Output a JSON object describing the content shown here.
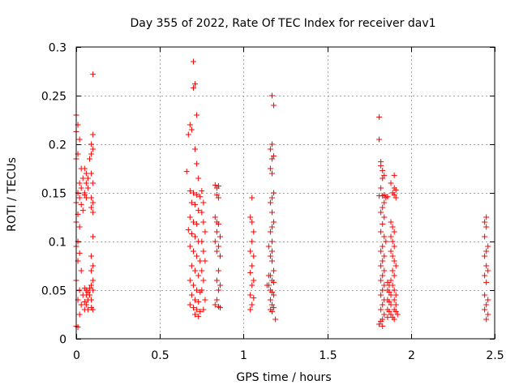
{
  "chart_data": {
    "type": "scatter",
    "title": "Day 355 of 2022, Rate Of TEC Index for receiver dav1",
    "xlabel": "GPS time / hours",
    "ylabel": "ROTI / TECUs",
    "xlim": [
      0,
      2.5
    ],
    "ylim": [
      0,
      0.3
    ],
    "xticks": [
      0,
      0.5,
      1,
      1.5,
      2,
      2.5
    ],
    "xtick_labels": [
      "0",
      "0.5",
      "1",
      "1.5",
      "2",
      "2.5"
    ],
    "yticks": [
      0,
      0.05,
      0.1,
      0.15,
      0.2,
      0.25,
      0.3
    ],
    "ytick_labels": [
      "0",
      "0.05",
      "0.1",
      "0.15",
      "0.2",
      "0.25",
      "0.3"
    ],
    "grid": true,
    "marker": "+",
    "color": "#ff0000",
    "series": [
      {
        "name": "ROTI",
        "points": [
          [
            0.0,
            0.23
          ],
          [
            0.01,
            0.22
          ],
          [
            0.0,
            0.213
          ],
          [
            0.02,
            0.205
          ],
          [
            0.01,
            0.19
          ],
          [
            0.0,
            0.185
          ],
          [
            0.03,
            0.175
          ],
          [
            0.04,
            0.165
          ],
          [
            0.02,
            0.16
          ],
          [
            0.03,
            0.155
          ],
          [
            0.01,
            0.15
          ],
          [
            0.05,
            0.148
          ],
          [
            0.02,
            0.145
          ],
          [
            0.0,
            0.14
          ],
          [
            0.03,
            0.138
          ],
          [
            0.04,
            0.132
          ],
          [
            0.01,
            0.128
          ],
          [
            0.0,
            0.12
          ],
          [
            0.02,
            0.115
          ],
          [
            0.01,
            0.1
          ],
          [
            0.0,
            0.095
          ],
          [
            0.02,
            0.088
          ],
          [
            0.01,
            0.08
          ],
          [
            0.03,
            0.07
          ],
          [
            0.0,
            0.06
          ],
          [
            0.02,
            0.05
          ],
          [
            0.04,
            0.045
          ],
          [
            0.01,
            0.04
          ],
          [
            0.03,
            0.035
          ],
          [
            0.05,
            0.03
          ],
          [
            0.02,
            0.025
          ],
          [
            0.0,
            0.013
          ],
          [
            0.01,
            0.012
          ],
          [
            0.05,
            0.175
          ],
          [
            0.06,
            0.17
          ],
          [
            0.07,
            0.165
          ],
          [
            0.06,
            0.16
          ],
          [
            0.07,
            0.155
          ],
          [
            0.05,
            0.15
          ],
          [
            0.06,
            0.145
          ],
          [
            0.05,
            0.052
          ],
          [
            0.06,
            0.05
          ],
          [
            0.07,
            0.048
          ],
          [
            0.06,
            0.045
          ],
          [
            0.07,
            0.04
          ],
          [
            0.05,
            0.038
          ],
          [
            0.06,
            0.035
          ],
          [
            0.07,
            0.03
          ],
          [
            0.1,
            0.272
          ],
          [
            0.1,
            0.21
          ],
          [
            0.09,
            0.2
          ],
          [
            0.1,
            0.195
          ],
          [
            0.09,
            0.19
          ],
          [
            0.08,
            0.185
          ],
          [
            0.09,
            0.17
          ],
          [
            0.1,
            0.16
          ],
          [
            0.09,
            0.145
          ],
          [
            0.1,
            0.14
          ],
          [
            0.09,
            0.135
          ],
          [
            0.1,
            0.13
          ],
          [
            0.1,
            0.105
          ],
          [
            0.09,
            0.085
          ],
          [
            0.1,
            0.075
          ],
          [
            0.09,
            0.07
          ],
          [
            0.1,
            0.06
          ],
          [
            0.09,
            0.055
          ],
          [
            0.1,
            0.05
          ],
          [
            0.08,
            0.045
          ],
          [
            0.09,
            0.04
          ],
          [
            0.1,
            0.03
          ],
          [
            0.08,
            0.052
          ],
          [
            0.09,
            0.032
          ],
          [
            0.68,
            0.22
          ],
          [
            0.69,
            0.215
          ],
          [
            0.67,
            0.21
          ],
          [
            0.66,
            0.172
          ],
          [
            0.7,
            0.285
          ],
          [
            0.71,
            0.262
          ],
          [
            0.7,
            0.258
          ],
          [
            0.72,
            0.23
          ],
          [
            0.71,
            0.195
          ],
          [
            0.72,
            0.18
          ],
          [
            0.73,
            0.165
          ],
          [
            0.68,
            0.152
          ],
          [
            0.7,
            0.15
          ],
          [
            0.72,
            0.148
          ],
          [
            0.74,
            0.146
          ],
          [
            0.69,
            0.14
          ],
          [
            0.71,
            0.138
          ],
          [
            0.73,
            0.132
          ],
          [
            0.68,
            0.125
          ],
          [
            0.7,
            0.12
          ],
          [
            0.72,
            0.118
          ],
          [
            0.67,
            0.112
          ],
          [
            0.69,
            0.108
          ],
          [
            0.71,
            0.105
          ],
          [
            0.73,
            0.1
          ],
          [
            0.68,
            0.095
          ],
          [
            0.7,
            0.09
          ],
          [
            0.72,
            0.085
          ],
          [
            0.74,
            0.08
          ],
          [
            0.69,
            0.075
          ],
          [
            0.71,
            0.07
          ],
          [
            0.73,
            0.065
          ],
          [
            0.68,
            0.06
          ],
          [
            0.7,
            0.055
          ],
          [
            0.72,
            0.05
          ],
          [
            0.74,
            0.048
          ],
          [
            0.69,
            0.045
          ],
          [
            0.71,
            0.04
          ],
          [
            0.73,
            0.038
          ],
          [
            0.68,
            0.035
          ],
          [
            0.7,
            0.032
          ],
          [
            0.72,
            0.03
          ],
          [
            0.71,
            0.025
          ],
          [
            0.73,
            0.023
          ],
          [
            0.75,
            0.152
          ],
          [
            0.76,
            0.14
          ],
          [
            0.75,
            0.13
          ],
          [
            0.76,
            0.12
          ],
          [
            0.77,
            0.11
          ],
          [
            0.75,
            0.1
          ],
          [
            0.76,
            0.09
          ],
          [
            0.77,
            0.08
          ],
          [
            0.75,
            0.07
          ],
          [
            0.76,
            0.06
          ],
          [
            0.75,
            0.05
          ],
          [
            0.77,
            0.04
          ],
          [
            0.76,
            0.03
          ],
          [
            0.74,
            0.028
          ],
          [
            0.83,
            0.158
          ],
          [
            0.84,
            0.155
          ],
          [
            0.85,
            0.157
          ],
          [
            0.84,
            0.148
          ],
          [
            0.85,
            0.145
          ],
          [
            0.83,
            0.125
          ],
          [
            0.84,
            0.12
          ],
          [
            0.85,
            0.118
          ],
          [
            0.84,
            0.11
          ],
          [
            0.86,
            0.105
          ],
          [
            0.83,
            0.1
          ],
          [
            0.85,
            0.095
          ],
          [
            0.84,
            0.09
          ],
          [
            0.86,
            0.085
          ],
          [
            0.85,
            0.07
          ],
          [
            0.84,
            0.06
          ],
          [
            0.86,
            0.055
          ],
          [
            0.85,
            0.05
          ],
          [
            0.84,
            0.04
          ],
          [
            0.83,
            0.035
          ],
          [
            0.86,
            0.032
          ],
          [
            0.85,
            0.033
          ],
          [
            1.05,
            0.145
          ],
          [
            1.04,
            0.125
          ],
          [
            1.05,
            0.12
          ],
          [
            1.06,
            0.11
          ],
          [
            1.05,
            0.1
          ],
          [
            1.04,
            0.09
          ],
          [
            1.06,
            0.085
          ],
          [
            1.05,
            0.075
          ],
          [
            1.04,
            0.068
          ],
          [
            1.06,
            0.06
          ],
          [
            1.05,
            0.055
          ],
          [
            1.04,
            0.045
          ],
          [
            1.06,
            0.042
          ],
          [
            1.05,
            0.035
          ],
          [
            1.04,
            0.03
          ],
          [
            1.17,
            0.25
          ],
          [
            1.18,
            0.24
          ],
          [
            1.17,
            0.2
          ],
          [
            1.16,
            0.195
          ],
          [
            1.18,
            0.188
          ],
          [
            1.17,
            0.185
          ],
          [
            1.16,
            0.175
          ],
          [
            1.17,
            0.17
          ],
          [
            1.18,
            0.15
          ],
          [
            1.17,
            0.145
          ],
          [
            1.16,
            0.14
          ],
          [
            1.17,
            0.13
          ],
          [
            1.18,
            0.12
          ],
          [
            1.17,
            0.115
          ],
          [
            1.16,
            0.11
          ],
          [
            1.17,
            0.1
          ],
          [
            1.15,
            0.095
          ],
          [
            1.17,
            0.09
          ],
          [
            1.16,
            0.085
          ],
          [
            1.17,
            0.08
          ],
          [
            1.18,
            0.07
          ],
          [
            1.16,
            0.065
          ],
          [
            1.17,
            0.06
          ],
          [
            1.18,
            0.058
          ],
          [
            1.15,
            0.055
          ],
          [
            1.16,
            0.05
          ],
          [
            1.17,
            0.048
          ],
          [
            1.18,
            0.045
          ],
          [
            1.16,
            0.04
          ],
          [
            1.17,
            0.035
          ],
          [
            1.18,
            0.032
          ],
          [
            1.16,
            0.03
          ],
          [
            1.17,
            0.028
          ],
          [
            1.19,
            0.02
          ],
          [
            1.14,
            0.055
          ],
          [
            1.15,
            0.065
          ],
          [
            1.81,
            0.228
          ],
          [
            1.81,
            0.205
          ],
          [
            1.82,
            0.182
          ],
          [
            1.82,
            0.178
          ],
          [
            1.83,
            0.173
          ],
          [
            1.84,
            0.168
          ],
          [
            1.83,
            0.165
          ],
          [
            1.82,
            0.155
          ],
          [
            1.84,
            0.148
          ],
          [
            1.83,
            0.147
          ],
          [
            1.81,
            0.147
          ],
          [
            1.86,
            0.146
          ],
          [
            1.85,
            0.145
          ],
          [
            1.84,
            0.14
          ],
          [
            1.83,
            0.135
          ],
          [
            1.82,
            0.13
          ],
          [
            1.84,
            0.125
          ],
          [
            1.83,
            0.118
          ],
          [
            1.82,
            0.11
          ],
          [
            1.84,
            0.105
          ],
          [
            1.85,
            0.1
          ],
          [
            1.83,
            0.095
          ],
          [
            1.82,
            0.09
          ],
          [
            1.84,
            0.085
          ],
          [
            1.83,
            0.08
          ],
          [
            1.82,
            0.075
          ],
          [
            1.84,
            0.07
          ],
          [
            1.83,
            0.065
          ],
          [
            1.82,
            0.06
          ],
          [
            1.84,
            0.055
          ],
          [
            1.83,
            0.05
          ],
          [
            1.82,
            0.045
          ],
          [
            1.84,
            0.04
          ],
          [
            1.83,
            0.035
          ],
          [
            1.82,
            0.03
          ],
          [
            1.84,
            0.025
          ],
          [
            1.83,
            0.02
          ],
          [
            1.82,
            0.018
          ],
          [
            1.81,
            0.015
          ],
          [
            1.83,
            0.013
          ],
          [
            1.86,
            0.058
          ],
          [
            1.87,
            0.055
          ],
          [
            1.86,
            0.05
          ],
          [
            1.87,
            0.048
          ],
          [
            1.88,
            0.045
          ],
          [
            1.86,
            0.04
          ],
          [
            1.87,
            0.038
          ],
          [
            1.88,
            0.035
          ],
          [
            1.86,
            0.03
          ],
          [
            1.87,
            0.028
          ],
          [
            1.88,
            0.025
          ],
          [
            1.86,
            0.022
          ],
          [
            1.89,
            0.022
          ],
          [
            1.9,
            0.02
          ],
          [
            1.9,
            0.155
          ],
          [
            1.91,
            0.153
          ],
          [
            1.89,
            0.15
          ],
          [
            1.9,
            0.148
          ],
          [
            1.91,
            0.145
          ],
          [
            1.88,
            0.16
          ],
          [
            1.9,
            0.168
          ],
          [
            1.88,
            0.12
          ],
          [
            1.89,
            0.115
          ],
          [
            1.9,
            0.11
          ],
          [
            1.88,
            0.105
          ],
          [
            1.89,
            0.1
          ],
          [
            1.9,
            0.095
          ],
          [
            1.88,
            0.09
          ],
          [
            1.89,
            0.085
          ],
          [
            1.9,
            0.08
          ],
          [
            1.91,
            0.075
          ],
          [
            1.89,
            0.07
          ],
          [
            1.9,
            0.065
          ],
          [
            1.88,
            0.06
          ],
          [
            1.89,
            0.055
          ],
          [
            1.9,
            0.05
          ],
          [
            1.91,
            0.045
          ],
          [
            1.9,
            0.04
          ],
          [
            1.91,
            0.035
          ],
          [
            1.9,
            0.03
          ],
          [
            1.92,
            0.025
          ],
          [
            1.91,
            0.028
          ],
          [
            2.45,
            0.125
          ],
          [
            2.44,
            0.12
          ],
          [
            2.45,
            0.115
          ],
          [
            2.44,
            0.105
          ],
          [
            2.46,
            0.095
          ],
          [
            2.45,
            0.09
          ],
          [
            2.44,
            0.085
          ],
          [
            2.45,
            0.075
          ],
          [
            2.46,
            0.07
          ],
          [
            2.44,
            0.065
          ],
          [
            2.45,
            0.058
          ],
          [
            2.44,
            0.045
          ],
          [
            2.46,
            0.04
          ],
          [
            2.45,
            0.035
          ],
          [
            2.44,
            0.03
          ],
          [
            2.46,
            0.025
          ],
          [
            2.45,
            0.02
          ]
        ]
      }
    ]
  }
}
